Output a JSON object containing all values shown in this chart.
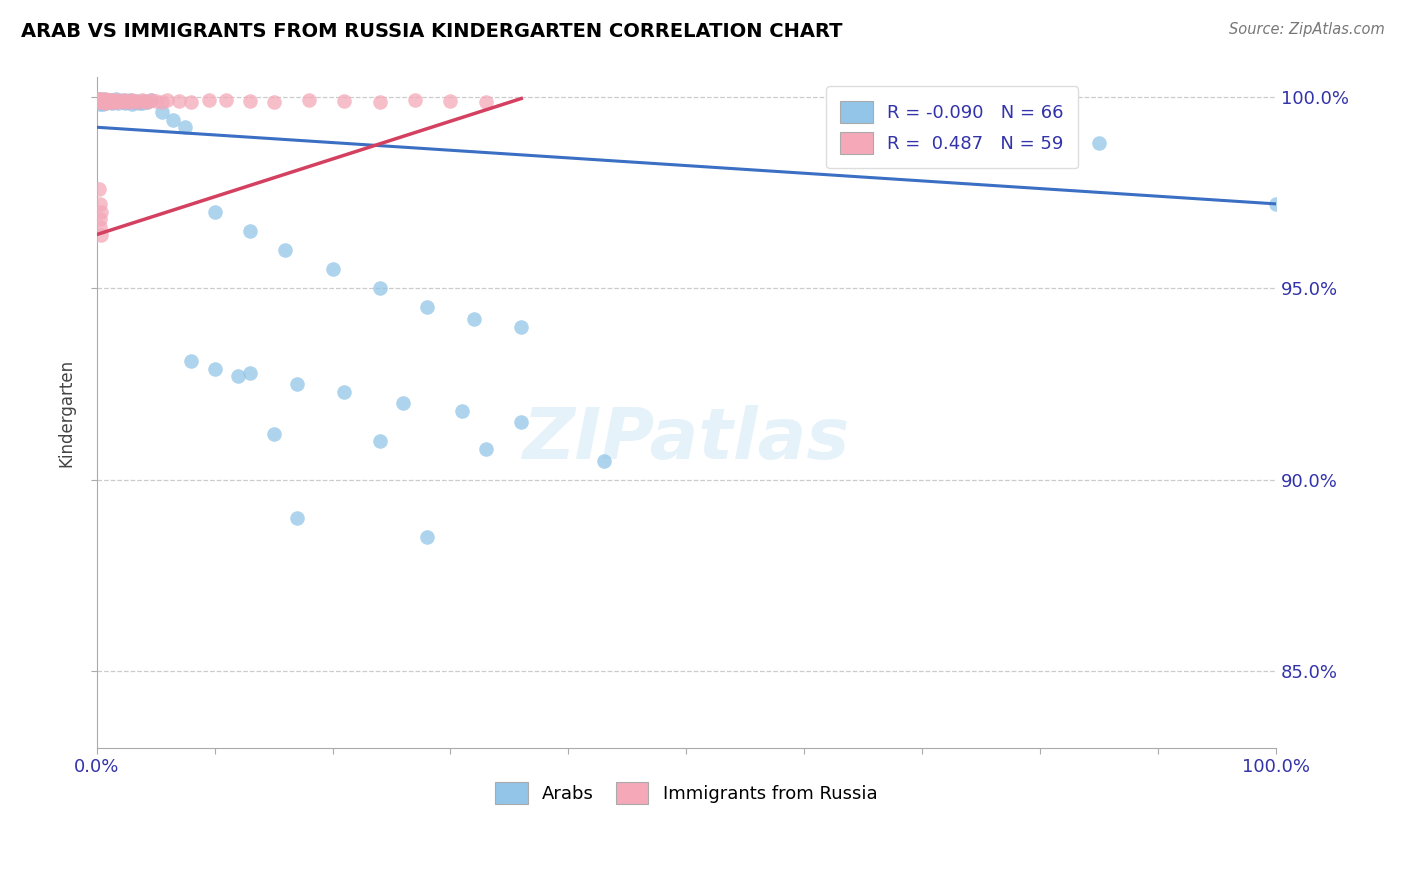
{
  "title": "ARAB VS IMMIGRANTS FROM RUSSIA KINDERGARTEN CORRELATION CHART",
  "source": "Source: ZipAtlas.com",
  "ylabel": "Kindergarten",
  "yticks": [
    0.85,
    0.9,
    0.95,
    1.0
  ],
  "ytick_labels": [
    "85.0%",
    "90.0%",
    "95.0%",
    "100.0%"
  ],
  "legend_labels": [
    "Arabs",
    "Immigrants from Russia"
  ],
  "R_arab": -0.09,
  "N_arab": 66,
  "R_russia": 0.487,
  "N_russia": 59,
  "color_arab": "#92C5E8",
  "color_russia": "#F4A8B8",
  "trendline_arab": "#3A6FC4",
  "trendline_russia": "#D44060",
  "arab_x": [
    0.001,
    0.002,
    0.002,
    0.003,
    0.003,
    0.004,
    0.004,
    0.005,
    0.005,
    0.006,
    0.006,
    0.007,
    0.007,
    0.008,
    0.008,
    0.009,
    0.01,
    0.01,
    0.011,
    0.012,
    0.013,
    0.014,
    0.015,
    0.016,
    0.018,
    0.02,
    0.022,
    0.024,
    0.026,
    0.028,
    0.03,
    0.032,
    0.034,
    0.036,
    0.038,
    0.04,
    0.043,
    0.046,
    0.055,
    0.065,
    0.075,
    0.1,
    0.13,
    0.16,
    0.2,
    0.24,
    0.28,
    0.32,
    0.36,
    0.13,
    0.17,
    0.21,
    0.26,
    0.31,
    0.36,
    0.15,
    0.24,
    0.33,
    0.43,
    0.17,
    0.28,
    0.85,
    1.0,
    0.08,
    0.1,
    0.12
  ],
  "arab_y": [
    0.999,
    0.9985,
    0.9995,
    0.998,
    0.999,
    0.9985,
    0.9995,
    0.998,
    0.999,
    0.9985,
    0.9992,
    0.9988,
    0.9994,
    0.9982,
    0.999,
    0.9985,
    0.9988,
    0.9992,
    0.9986,
    0.9991,
    0.9984,
    0.9989,
    0.9987,
    0.9993,
    0.9982,
    0.9988,
    0.999,
    0.9984,
    0.9986,
    0.9992,
    0.998,
    0.9985,
    0.9988,
    0.9982,
    0.9984,
    0.9988,
    0.9985,
    0.999,
    0.996,
    0.994,
    0.992,
    0.97,
    0.965,
    0.96,
    0.955,
    0.95,
    0.945,
    0.942,
    0.94,
    0.928,
    0.925,
    0.923,
    0.92,
    0.918,
    0.915,
    0.912,
    0.91,
    0.908,
    0.905,
    0.89,
    0.885,
    0.988,
    0.972,
    0.931,
    0.929,
    0.927
  ],
  "russia_x": [
    0.001,
    0.001,
    0.002,
    0.002,
    0.003,
    0.003,
    0.004,
    0.004,
    0.005,
    0.005,
    0.006,
    0.006,
    0.007,
    0.007,
    0.008,
    0.008,
    0.009,
    0.01,
    0.01,
    0.011,
    0.012,
    0.013,
    0.014,
    0.015,
    0.016,
    0.018,
    0.02,
    0.022,
    0.024,
    0.026,
    0.028,
    0.03,
    0.032,
    0.035,
    0.038,
    0.04,
    0.043,
    0.046,
    0.05,
    0.055,
    0.06,
    0.07,
    0.08,
    0.095,
    0.11,
    0.13,
    0.15,
    0.18,
    0.21,
    0.24,
    0.27,
    0.3,
    0.33,
    0.002,
    0.003,
    0.004,
    0.003,
    0.003,
    0.004
  ],
  "russia_y": [
    0.9995,
    0.9988,
    0.9992,
    0.9985,
    0.999,
    0.9995,
    0.9988,
    0.9992,
    0.9985,
    0.999,
    0.9988,
    0.9994,
    0.9982,
    0.999,
    0.9985,
    0.9992,
    0.9988,
    0.9985,
    0.9992,
    0.9988,
    0.999,
    0.9985,
    0.9992,
    0.9988,
    0.9985,
    0.999,
    0.9988,
    0.9985,
    0.9992,
    0.9988,
    0.9985,
    0.999,
    0.9988,
    0.9985,
    0.9992,
    0.9988,
    0.9985,
    0.999,
    0.9988,
    0.9985,
    0.999,
    0.9988,
    0.9985,
    0.9992,
    0.999,
    0.9988,
    0.9985,
    0.999,
    0.9988,
    0.9985,
    0.999,
    0.9988,
    0.9985,
    0.976,
    0.972,
    0.97,
    0.968,
    0.966,
    0.964
  ],
  "arab_trend_x": [
    0.0,
    1.0
  ],
  "arab_trend_y": [
    0.992,
    0.972
  ],
  "russia_trend_x": [
    0.0,
    0.36
  ],
  "russia_trend_y": [
    0.964,
    0.9995
  ],
  "xlim": [
    0.0,
    1.0
  ],
  "ylim": [
    0.83,
    1.005
  ]
}
